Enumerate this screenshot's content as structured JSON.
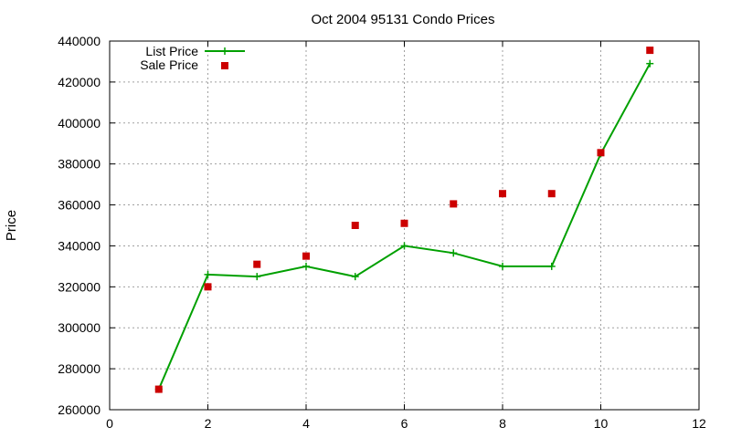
{
  "chart_data": {
    "type": "line",
    "title": "Oct 2004 95131 Condo Prices",
    "xlabel": "",
    "ylabel": "Price",
    "xlim": [
      0,
      12
    ],
    "ylim": [
      260000,
      440000
    ],
    "x_ticks": [
      0,
      2,
      4,
      6,
      8,
      10,
      12
    ],
    "y_ticks": [
      260000,
      280000,
      300000,
      320000,
      340000,
      360000,
      380000,
      400000,
      420000,
      440000
    ],
    "grid": true,
    "legend_position": "top-left",
    "series": [
      {
        "name": "List Price",
        "style": "line-with-plus-markers",
        "color": "#00a000",
        "x": [
          1,
          2,
          3,
          4,
          5,
          6,
          7,
          8,
          9,
          10,
          11
        ],
        "values": [
          270000,
          326000,
          325000,
          330000,
          325000,
          340000,
          336500,
          330000,
          330000,
          385000,
          429000
        ]
      },
      {
        "name": "Sale Price",
        "style": "square-markers",
        "color": "#cc0000",
        "x": [
          1,
          2,
          3,
          4,
          5,
          6,
          7,
          8,
          9,
          10,
          11
        ],
        "values": [
          270000,
          320000,
          331000,
          335000,
          350000,
          351000,
          360500,
          365500,
          365500,
          385500,
          435500
        ]
      }
    ]
  }
}
